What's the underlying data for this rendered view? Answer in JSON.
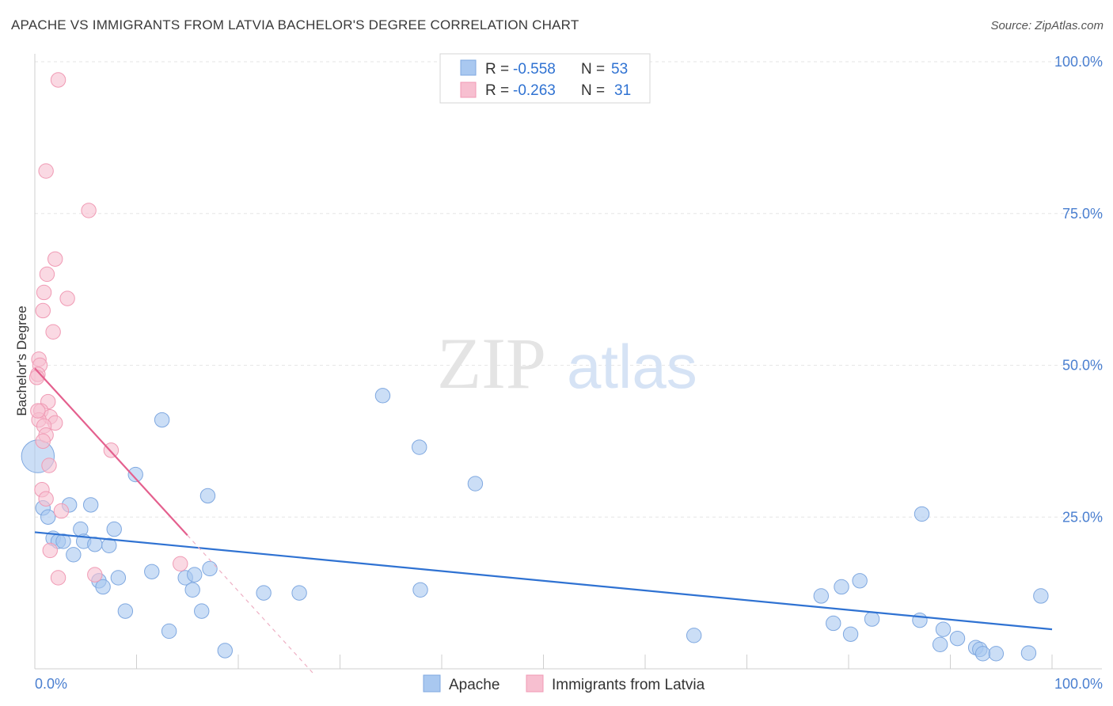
{
  "title": "APACHE VS IMMIGRANTS FROM LATVIA BACHELOR'S DEGREE CORRELATION CHART",
  "source": "Source: ZipAtlas.com",
  "watermark": {
    "zip": "ZIP",
    "atlas": "atlas"
  },
  "chart_data": {
    "type": "scatter",
    "title": "APACHE VS IMMIGRANTS FROM LATVIA BACHELOR'S DEGREE CORRELATION CHART",
    "ylabel": "Bachelor's Degree",
    "xlim": [
      0,
      100
    ],
    "ylim": [
      0,
      100
    ],
    "x_tick_labels": [
      {
        "value": 0,
        "label": "0.0%"
      },
      {
        "value": 100,
        "label": "100.0%"
      }
    ],
    "y_tick_labels": [
      {
        "value": 25,
        "label": "25.0%"
      },
      {
        "value": 50,
        "label": "50.0%"
      },
      {
        "value": 75,
        "label": "75.0%"
      },
      {
        "value": 100,
        "label": "100.0%"
      }
    ],
    "stats": [
      {
        "r_label": "R = ",
        "r": "-0.558",
        "n_label": "N = ",
        "n": "53"
      },
      {
        "r_label": "R = ",
        "r": "-0.263",
        "n_label": "N = ",
        "n": "31"
      }
    ],
    "series": [
      {
        "name": "Apache",
        "fill": "#a9c8f0",
        "stroke": "#7fa8e0",
        "line_color": "#2f72d2",
        "trend": {
          "x0": 0,
          "y0": 22.5,
          "x1": 100,
          "y1": 6.5
        },
        "points": [
          [
            0.3,
            35.0,
            18
          ],
          [
            0.8,
            26.5,
            8
          ],
          [
            1.3,
            25.0,
            8
          ],
          [
            1.8,
            21.5,
            8
          ],
          [
            2.3,
            21.0,
            8
          ],
          [
            2.8,
            21.0,
            8
          ],
          [
            3.4,
            27.0,
            8
          ],
          [
            3.8,
            18.8,
            8
          ],
          [
            4.5,
            23.0,
            8
          ],
          [
            4.8,
            21.0,
            8
          ],
          [
            5.5,
            27.0,
            8
          ],
          [
            5.9,
            20.5,
            8
          ],
          [
            6.3,
            14.5,
            8
          ],
          [
            6.7,
            13.5,
            8
          ],
          [
            7.3,
            20.3,
            8
          ],
          [
            7.8,
            23.0,
            8
          ],
          [
            8.2,
            15.0,
            8
          ],
          [
            8.9,
            9.5,
            8
          ],
          [
            9.9,
            32.0,
            8
          ],
          [
            11.5,
            16.0,
            8
          ],
          [
            12.5,
            41.0,
            8
          ],
          [
            13.2,
            6.2,
            8
          ],
          [
            14.8,
            15.0,
            8
          ],
          [
            15.5,
            13.0,
            8
          ],
          [
            15.7,
            15.5,
            8
          ],
          [
            16.4,
            9.5,
            8
          ],
          [
            17.0,
            28.5,
            8
          ],
          [
            17.2,
            16.5,
            8
          ],
          [
            18.7,
            3.0,
            8
          ],
          [
            22.5,
            12.5,
            8
          ],
          [
            26.0,
            12.5,
            8
          ],
          [
            34.2,
            45.0,
            8
          ],
          [
            37.8,
            36.5,
            8
          ],
          [
            37.9,
            13.0,
            8
          ],
          [
            43.3,
            30.5,
            8
          ],
          [
            64.8,
            5.5,
            8
          ],
          [
            77.3,
            12.0,
            8
          ],
          [
            78.5,
            7.5,
            8
          ],
          [
            79.3,
            13.5,
            8
          ],
          [
            80.2,
            5.7,
            8
          ],
          [
            81.1,
            14.5,
            8
          ],
          [
            82.3,
            8.2,
            8
          ],
          [
            87.0,
            8.0,
            8
          ],
          [
            87.2,
            25.5,
            8
          ],
          [
            89.0,
            4.0,
            8
          ],
          [
            89.3,
            6.5,
            8
          ],
          [
            90.7,
            5.0,
            8
          ],
          [
            92.5,
            3.5,
            8
          ],
          [
            92.9,
            3.2,
            8
          ],
          [
            93.2,
            2.5,
            8
          ],
          [
            94.5,
            2.5,
            8
          ],
          [
            97.7,
            2.6,
            8
          ],
          [
            98.9,
            12.0,
            8
          ]
        ]
      },
      {
        "name": "Immigrants from Latvia",
        "fill": "#f7bfd0",
        "stroke": "#f09ab4",
        "line_color": "#e4608e",
        "trend": {
          "x0": 0,
          "y0": 49.5,
          "x1": 15.0,
          "y1": 22.0
        },
        "trend_ext": {
          "x0": 15.0,
          "y0": 22.0,
          "x1": 27.5,
          "y1": -1.0
        },
        "points": [
          [
            2.3,
            97.0,
            8
          ],
          [
            1.1,
            82.0,
            8
          ],
          [
            5.3,
            75.5,
            8
          ],
          [
            2.0,
            67.5,
            8
          ],
          [
            1.2,
            65.0,
            8
          ],
          [
            0.9,
            62.0,
            8
          ],
          [
            3.2,
            61.0,
            8
          ],
          [
            0.8,
            59.0,
            8
          ],
          [
            1.8,
            55.5,
            8
          ],
          [
            0.4,
            51.0,
            8
          ],
          [
            0.5,
            50.0,
            8
          ],
          [
            0.3,
            48.5,
            8
          ],
          [
            0.2,
            48.0,
            8
          ],
          [
            1.3,
            44.0,
            8
          ],
          [
            0.6,
            42.5,
            8
          ],
          [
            1.5,
            41.5,
            8
          ],
          [
            0.4,
            41.0,
            8
          ],
          [
            2.0,
            40.5,
            8
          ],
          [
            0.9,
            40.0,
            8
          ],
          [
            1.1,
            38.5,
            8
          ],
          [
            0.8,
            37.5,
            8
          ],
          [
            7.5,
            36.0,
            8
          ],
          [
            1.4,
            33.5,
            8
          ],
          [
            0.7,
            29.5,
            8
          ],
          [
            1.1,
            28.0,
            8
          ],
          [
            2.6,
            26.0,
            8
          ],
          [
            1.5,
            19.5,
            8
          ],
          [
            2.3,
            15.0,
            8
          ],
          [
            5.9,
            15.5,
            8
          ],
          [
            14.3,
            17.3,
            8
          ],
          [
            0.3,
            42.5,
            8
          ]
        ]
      }
    ]
  }
}
